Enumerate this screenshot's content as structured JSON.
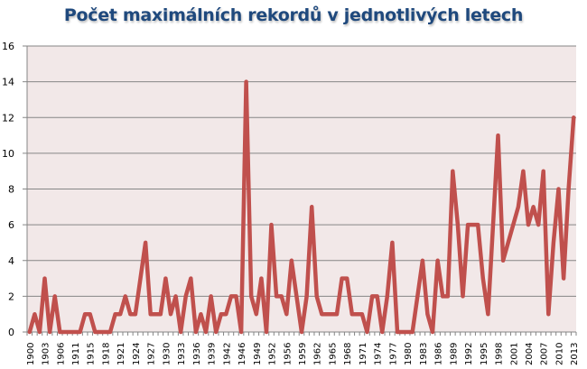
{
  "chart_data": {
    "type": "line",
    "title": "Počet maximálních rekordů v jednotlivých letech",
    "xlabel": "",
    "ylabel": "",
    "ylim": [
      0,
      16
    ],
    "y_ticks": [
      0,
      2,
      4,
      6,
      8,
      10,
      12,
      14,
      16
    ],
    "grid": true,
    "legend": "none",
    "x_tick_labels": [
      "1900",
      "1903",
      "1906",
      "1911",
      "1915",
      "1918",
      "1921",
      "1924",
      "1927",
      "1930",
      "1933",
      "1936",
      "1939",
      "1942",
      "1946",
      "1949",
      "1952",
      "1956",
      "1959",
      "1962",
      "1965",
      "1968",
      "1971",
      "1974",
      "1977",
      "1980",
      "1983",
      "1986",
      "1989",
      "1992",
      "1995",
      "1998",
      "2001",
      "2004",
      "2007",
      "2010",
      "2013"
    ],
    "x_tick_label_every": 3,
    "series": [
      {
        "color": "#C0504D",
        "values": [
          0,
          1,
          0,
          3,
          0,
          2,
          0,
          0,
          0,
          0,
          0,
          1,
          1,
          0,
          0,
          0,
          0,
          1,
          1,
          2,
          1,
          1,
          3,
          5,
          1,
          1,
          1,
          3,
          1,
          2,
          0,
          2,
          3,
          0,
          1,
          0,
          2,
          0,
          1,
          1,
          2,
          2,
          0,
          14,
          2,
          1,
          3,
          0,
          6,
          2,
          2,
          1,
          4,
          2,
          0,
          2,
          7,
          2,
          1,
          1,
          1,
          1,
          3,
          3,
          1,
          1,
          1,
          0,
          2,
          2,
          0,
          2,
          5,
          0,
          0,
          0,
          0,
          2,
          4,
          1,
          0,
          4,
          2,
          2,
          9,
          6,
          2,
          6,
          6,
          6,
          3,
          1,
          6,
          11,
          4,
          5,
          6,
          7,
          9,
          6,
          7,
          6,
          9,
          1,
          5,
          8,
          3,
          8,
          12
        ]
      }
    ],
    "colors": {
      "title": "#1F497D",
      "plot_background": "#F2E8E8",
      "gridline": "#868686",
      "line": "#C0504D"
    }
  }
}
